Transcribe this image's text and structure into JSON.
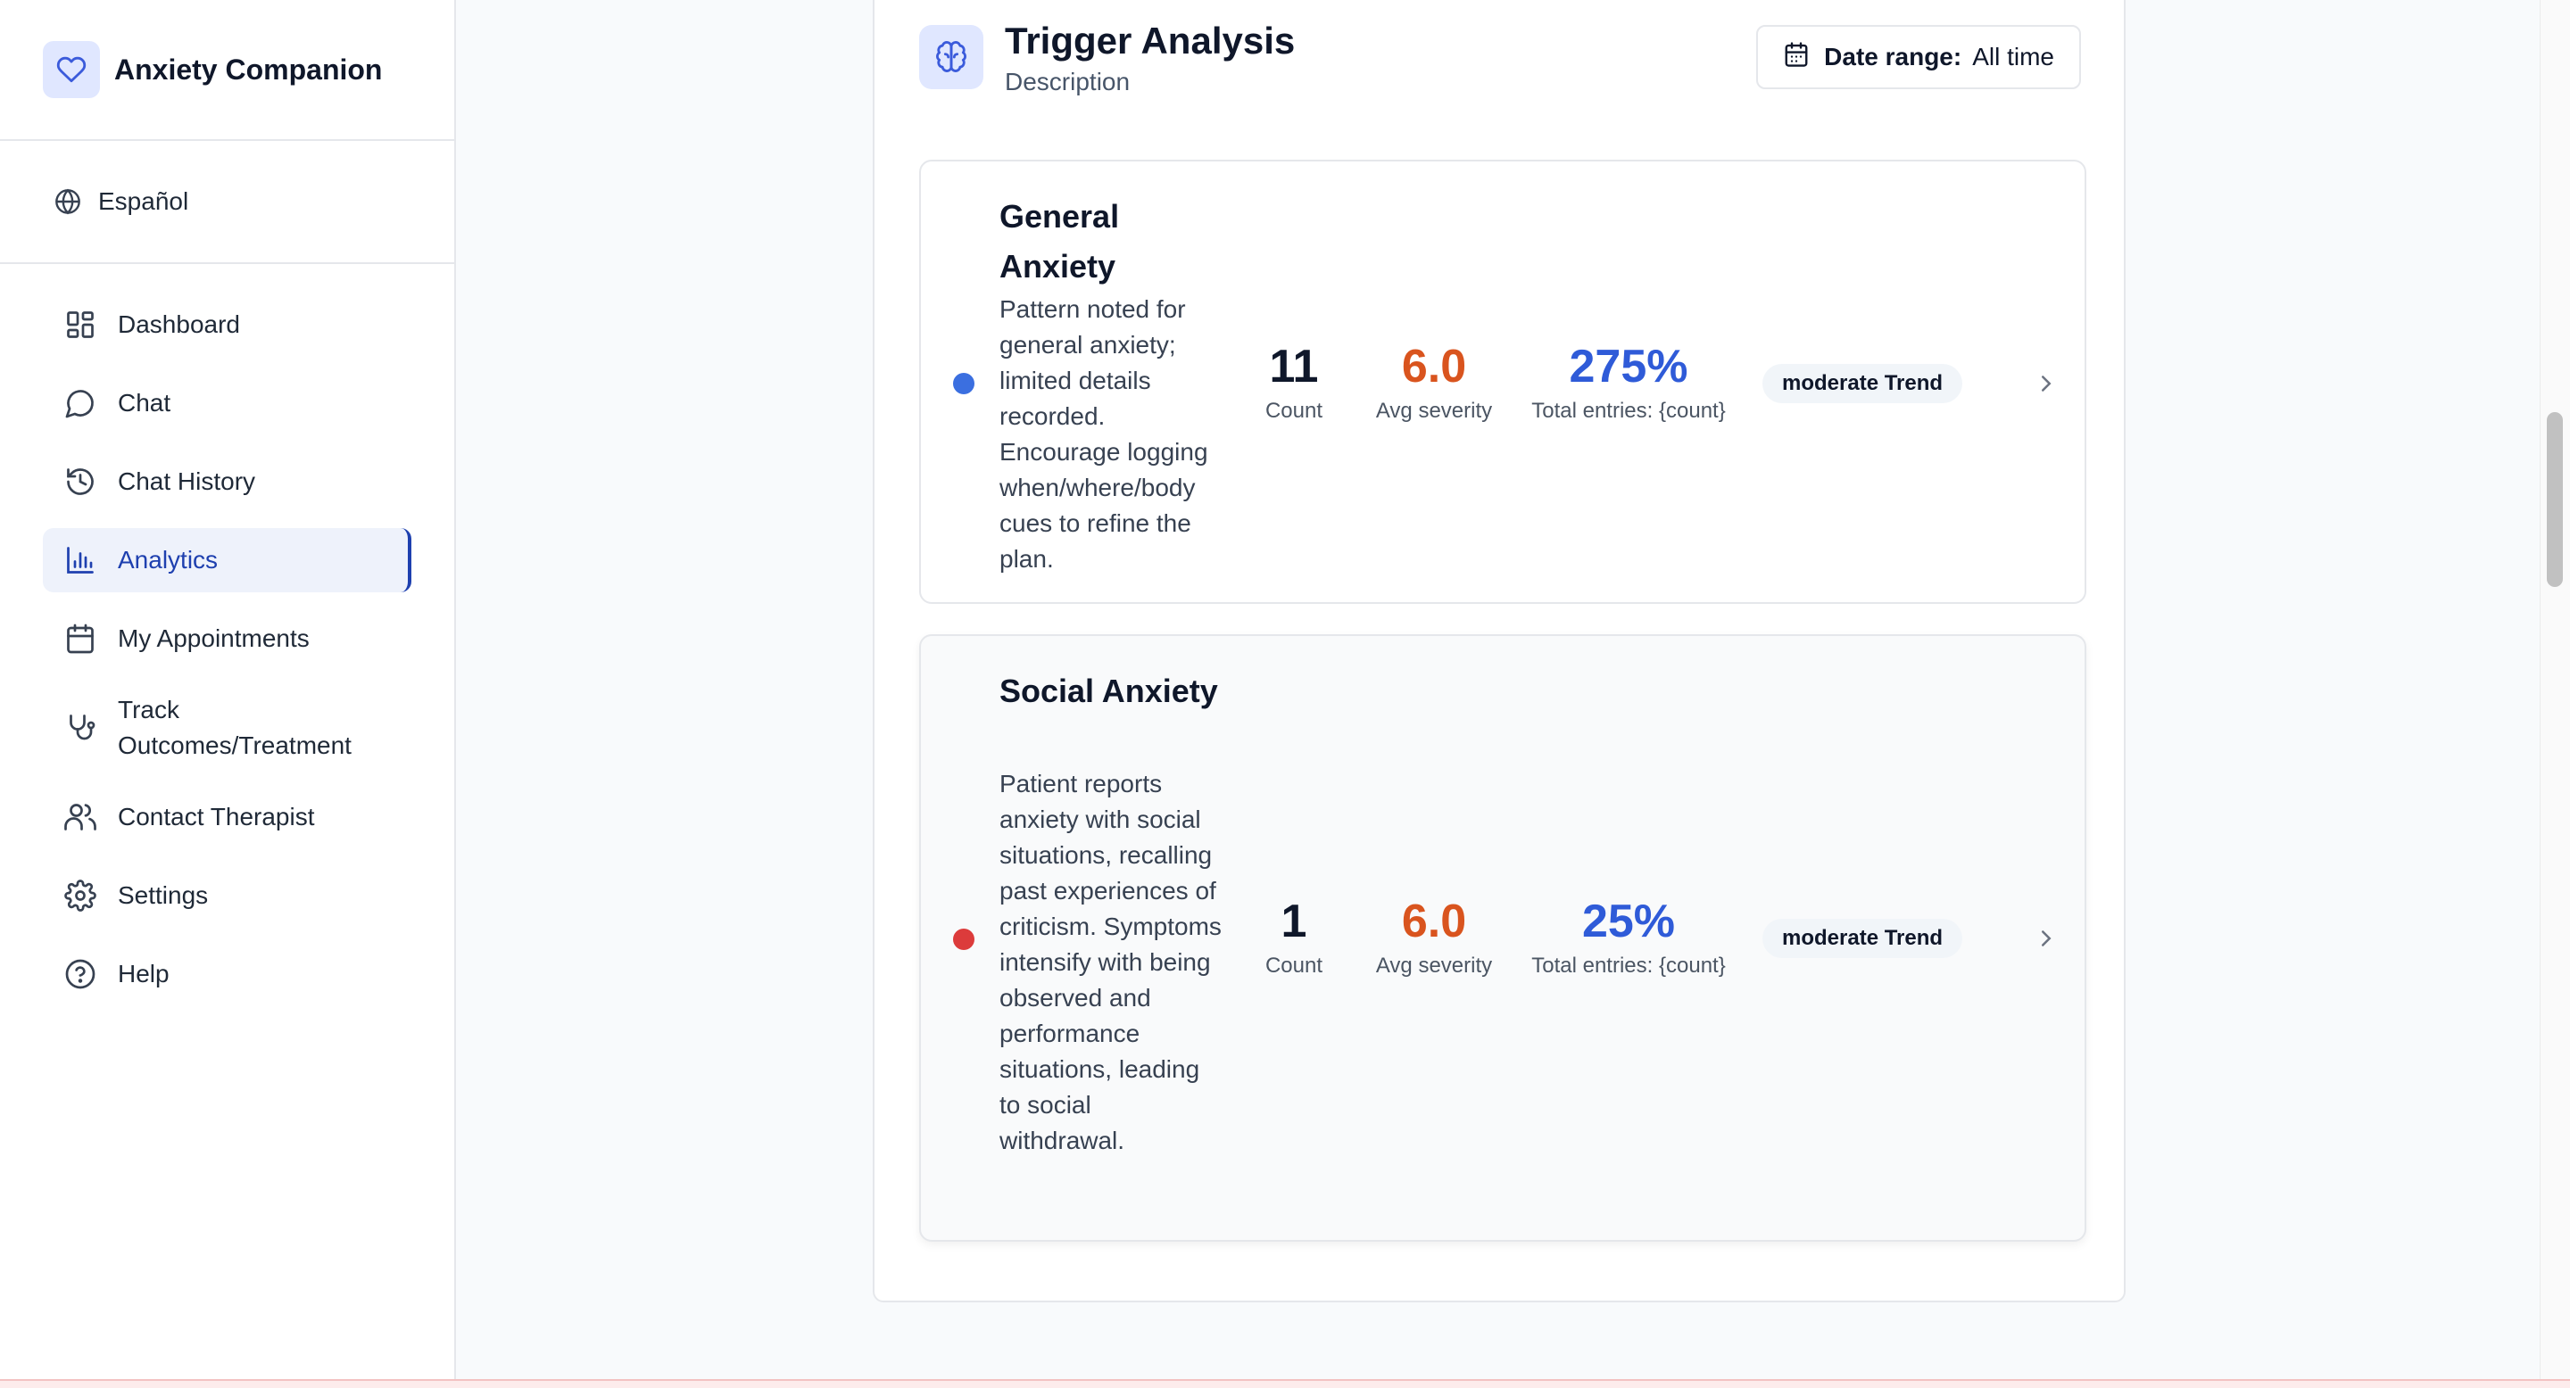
{
  "app": {
    "title": "Anxiety Companion"
  },
  "language": {
    "label": "Español"
  },
  "sidebar": {
    "items": [
      {
        "label": "Dashboard",
        "icon": "dashboard-icon"
      },
      {
        "label": "Chat",
        "icon": "chat-icon"
      },
      {
        "label": "Chat History",
        "icon": "history-icon"
      },
      {
        "label": "Analytics",
        "icon": "analytics-icon",
        "active": true
      },
      {
        "label": "My Appointments",
        "icon": "calendar-icon"
      },
      {
        "label": "Track Outcomes/Treatment",
        "icon": "stethoscope-icon"
      },
      {
        "label": "Contact Therapist",
        "icon": "users-icon"
      },
      {
        "label": "Settings",
        "icon": "gear-icon"
      },
      {
        "label": "Help",
        "icon": "help-icon"
      }
    ]
  },
  "trigger_analysis": {
    "title": "Trigger Analysis",
    "description": "Description",
    "date_range_label": "Date range:",
    "date_range_value": "All time",
    "triggers": [
      {
        "name": "General Anxiety",
        "dot_color": "#3b6fe0",
        "description": "Pattern noted for general anxiety; limited details recorded. Encourage logging when/where/body cues to refine the plan.",
        "count": "11",
        "count_label": "Count",
        "avg_severity": "6.0",
        "avg_severity_label": "Avg severity",
        "percent": "275%",
        "percent_label": "Total entries: {count}",
        "trend": "moderate Trend"
      },
      {
        "name": "Social Anxiety",
        "dot_color": "#dc3b3b",
        "description": "Patient reports anxiety with social situations, recalling past experiences of criticism. Symptoms intensify with being observed and performance situations, leading to social withdrawal.",
        "count": "1",
        "count_label": "Count",
        "avg_severity": "6.0",
        "avg_severity_label": "Avg severity",
        "percent": "25%",
        "percent_label": "Total entries: {count}",
        "trend": "moderate Trend"
      }
    ]
  },
  "colors": {
    "accent": "#1e40af",
    "severity": "#d9541e",
    "percent": "#2f5bd8"
  }
}
